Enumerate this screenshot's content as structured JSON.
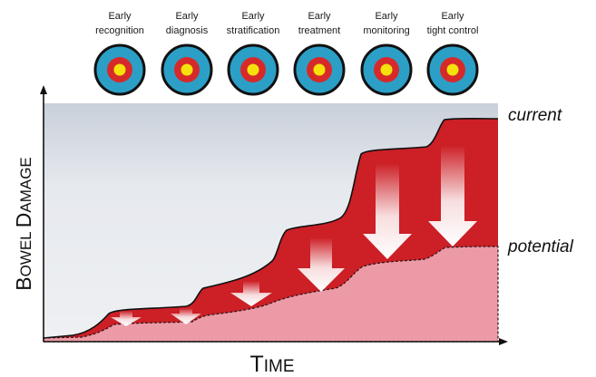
{
  "stages": [
    {
      "line1": "Early",
      "line2": "recognition"
    },
    {
      "line1": "Early",
      "line2": "diagnosis"
    },
    {
      "line1": "Early",
      "line2": "stratification"
    },
    {
      "line1": "Early",
      "line2": "treatment"
    },
    {
      "line1": "Early",
      "line2": "monitoring"
    },
    {
      "line1": "Early",
      "line2": "tight control"
    }
  ],
  "labels": {
    "current": "current",
    "potential": "potential"
  },
  "axes": {
    "y_first": "B",
    "y_rest": "OWEL ",
    "y_first2": "D",
    "y_rest2": "AMAGE",
    "x_first": "T",
    "x_rest": "IME"
  },
  "colors": {
    "target_outer": "#2c9fc7",
    "target_middle": "#d62a2a",
    "target_center": "#f5e20c",
    "current_fill": "#cc1f26",
    "potential_fill": "#ec9aa6",
    "background": "#e6e9ee"
  }
}
